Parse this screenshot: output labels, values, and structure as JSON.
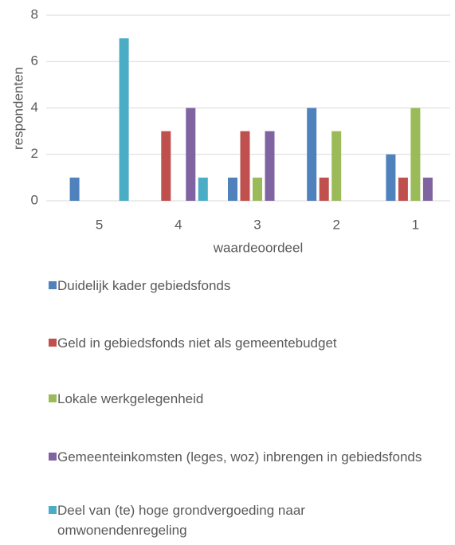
{
  "chart_data": {
    "type": "bar",
    "categories": [
      "5",
      "4",
      "3",
      "2",
      "1"
    ],
    "series": [
      {
        "name": "Duidelijk kader gebiedsfonds",
        "color": "#4f81bd",
        "values": [
          1,
          0,
          1,
          4,
          2
        ]
      },
      {
        "name": "Geld in gebiedsfonds niet als gemeentebudget",
        "color": "#c0504d",
        "values": [
          0,
          3,
          3,
          1,
          1
        ]
      },
      {
        "name": "Lokale werkgelegenheid",
        "color": "#9bbb59",
        "values": [
          0,
          0,
          1,
          3,
          4
        ]
      },
      {
        "name": "Gemeenteinkomsten (leges, woz) inbrengen in gebiedsfonds",
        "color": "#8064a2",
        "values": [
          0,
          4,
          3,
          0,
          1
        ]
      },
      {
        "name": "Deel van (te) hoge grondvergoeding naar omwonendenregeling",
        "color": "#4bacc6",
        "values": [
          7,
          1,
          0,
          0,
          0
        ]
      }
    ],
    "ylim": [
      0,
      8
    ],
    "yticks": [
      0,
      2,
      4,
      6,
      8
    ],
    "grid": true,
    "xlabel": "waardeoordeel",
    "ylabel": "respondenten",
    "legend": "bottom"
  }
}
